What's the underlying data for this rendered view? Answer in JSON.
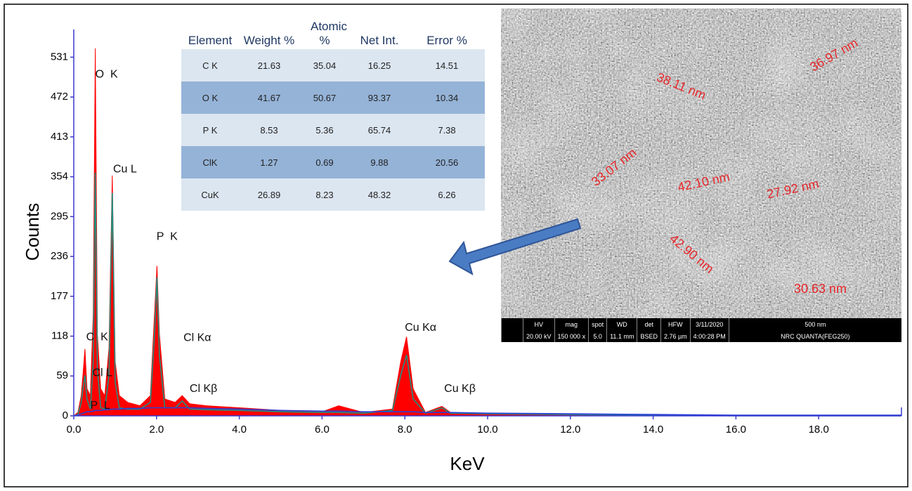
{
  "chart_data": {
    "type": "line",
    "x_label": "KeV",
    "y_label": "Counts",
    "xlim": [
      0,
      20
    ],
    "ylim": [
      0,
      572
    ],
    "xticks": [
      {
        "value": 0,
        "label": "0.0"
      },
      {
        "value": 2,
        "label": "2.0"
      },
      {
        "value": 4,
        "label": "4.0"
      },
      {
        "value": 6,
        "label": "6.0"
      },
      {
        "value": 8,
        "label": "8.0"
      },
      {
        "value": 10,
        "label": "10.0"
      },
      {
        "value": 12,
        "label": "12.0"
      },
      {
        "value": 14,
        "label": "14.0"
      },
      {
        "value": 16,
        "label": "16.0"
      },
      {
        "value": 18,
        "label": "18.0"
      }
    ],
    "yticks": [
      0,
      59,
      118,
      177,
      236,
      295,
      354,
      413,
      472,
      531
    ],
    "axis_color": "#3a3ad0",
    "x": [
      0,
      0.1,
      0.18,
      0.22,
      0.27,
      0.32,
      0.4,
      0.47,
      0.52,
      0.57,
      0.65,
      0.75,
      0.85,
      0.93,
      1.0,
      1.1,
      1.3,
      1.6,
      1.85,
      1.95,
      2.01,
      2.07,
      2.2,
      2.45,
      2.62,
      2.8,
      3.2,
      4.0,
      5.0,
      6.0,
      6.4,
      7.0,
      7.7,
      7.9,
      8.04,
      8.2,
      8.5,
      8.8,
      8.9,
      9.1,
      10,
      12,
      14,
      16,
      20
    ],
    "series": [
      {
        "style": "area",
        "color": "#ff0000",
        "values": [
          0,
          5,
          30,
          60,
          99,
          40,
          30,
          150,
          544,
          120,
          40,
          30,
          100,
          356,
          80,
          30,
          20,
          15,
          30,
          150,
          222,
          120,
          25,
          20,
          30,
          18,
          15,
          12,
          8,
          6,
          15,
          5,
          10,
          80,
          117,
          40,
          5,
          12,
          14,
          5,
          3,
          2,
          1,
          0,
          0
        ]
      },
      {
        "style": "line",
        "color": "#1f8f7f",
        "values": [
          0,
          2,
          20,
          40,
          60,
          25,
          10,
          80,
          360,
          70,
          12,
          10,
          60,
          330,
          50,
          12,
          10,
          10,
          20,
          120,
          205,
          90,
          12,
          12,
          22,
          10,
          9,
          8,
          6,
          5,
          5,
          4,
          8,
          60,
          90,
          25,
          4,
          10,
          12,
          4,
          3,
          2,
          1,
          0,
          0
        ]
      },
      {
        "style": "line",
        "color": "#2a3fd8",
        "values": [
          0,
          1,
          3,
          4,
          5,
          6,
          6,
          7,
          8,
          8,
          8,
          9,
          9,
          10,
          10,
          10,
          11,
          11,
          12,
          12,
          12,
          12,
          12,
          12,
          12,
          12,
          11,
          10,
          8,
          7,
          7,
          6,
          6,
          6,
          6,
          6,
          5,
          5,
          5,
          5,
          4,
          3,
          2,
          1,
          1
        ]
      }
    ],
    "annotations": [
      {
        "text": "O  K",
        "x": 0.52,
        "y": 505
      },
      {
        "text": "Cu L",
        "x": 0.95,
        "y": 365
      },
      {
        "text": "P  K",
        "x": 2.0,
        "y": 265
      },
      {
        "text": "Cl Kα",
        "x": 2.65,
        "y": 115
      },
      {
        "text": "Cl Kβ",
        "x": 2.8,
        "y": 40
      },
      {
        "text": "Cu Kα",
        "x": 8.0,
        "y": 130
      },
      {
        "text": "Cu Kβ",
        "x": 8.95,
        "y": 40
      },
      {
        "text": "C  K",
        "x": 0.3,
        "y": 116
      },
      {
        "text": "Cl L",
        "x": 0.45,
        "y": 63
      },
      {
        "text": "P  L",
        "x": 0.4,
        "y": 15
      }
    ]
  },
  "table": {
    "header": [
      "Element",
      "Weight %",
      "Atomic %",
      "Net Int.",
      "Error %"
    ],
    "rows": [
      [
        "C K",
        "21.63",
        "35.04",
        "16.25",
        "14.51"
      ],
      [
        "O K",
        "41.67",
        "50.67",
        "93.37",
        "10.34"
      ],
      [
        "P K",
        "8.53",
        "5.36",
        "65.74",
        "7.38"
      ],
      [
        "ClK",
        "1.27",
        "0.69",
        "9.88",
        "20.56"
      ],
      [
        "CuK",
        "26.89",
        "8.23",
        "48.32",
        "6.26"
      ]
    ]
  },
  "image": {
    "measurements": [
      "38.11 nm",
      "36.97 nm",
      "33.07 nm",
      "42.10 nm",
      "27.92 nm",
      "42.90 nm",
      "30.63 nm"
    ],
    "info_bar": [
      {
        "label": "HV",
        "value": "20.00 kV"
      },
      {
        "label": "mag",
        "value": "150 000 x"
      },
      {
        "label": "spot",
        "value": "5.0"
      },
      {
        "label": "WD",
        "value": "11.1 mm"
      },
      {
        "label": "det",
        "value": "BSED"
      },
      {
        "label": "HFW",
        "value": "2.76 µm"
      },
      {
        "label": "3/11/2020",
        "value": "4:00:28 PM"
      },
      {
        "label": "500 nm",
        "value": "NRC QUANTA(FEG250)"
      }
    ]
  }
}
